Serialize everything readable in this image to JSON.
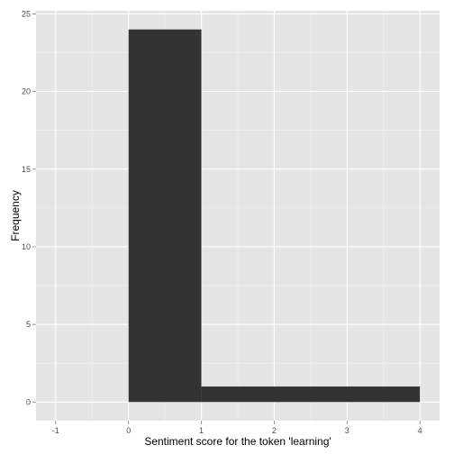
{
  "chart_data": {
    "type": "bar",
    "title": "",
    "xlabel": "Sentiment score for the token 'learning'",
    "ylabel": "Frequency",
    "xlim": [
      -1.27,
      4.27
    ],
    "ylim": [
      -1.2,
      25.2
    ],
    "x_ticks": [
      -1,
      0,
      1,
      2,
      3,
      4
    ],
    "y_ticks": [
      0,
      5,
      10,
      15,
      20,
      25
    ],
    "x_tick_labels": [
      "-1",
      "0",
      "1",
      "2",
      "3",
      "4"
    ],
    "y_tick_labels": [
      "0",
      "5",
      "10",
      "15",
      "20",
      "25"
    ],
    "grid": true,
    "bins": [
      {
        "start": 0,
        "end": 1,
        "count": 24
      },
      {
        "start": 1,
        "end": 4,
        "count": 1
      }
    ],
    "colors": {
      "panel": "#e5e5e5",
      "grid_major": "#ffffff",
      "grid_minor": "#f2f2f2",
      "bar": "#333333",
      "tick_label": "#4d4d4d",
      "axis_title": "#000000"
    }
  }
}
